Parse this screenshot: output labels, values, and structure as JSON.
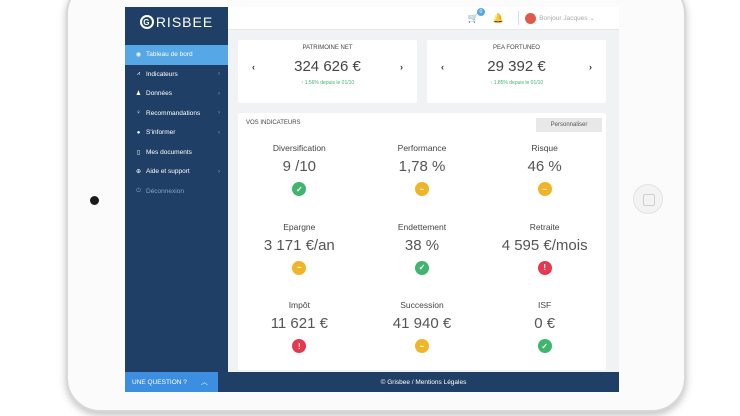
{
  "brand": {
    "logo_letter": "G",
    "logo_text": "RISBEE"
  },
  "sidebar": {
    "items": [
      {
        "label": "Tableau de bord",
        "icon": "dashboard-icon",
        "glyph": "◉"
      },
      {
        "label": "Indicateurs",
        "icon": "chart-icon",
        "glyph": "⩘"
      },
      {
        "label": "Données",
        "icon": "users-icon",
        "glyph": "♟"
      },
      {
        "label": "Recommandations",
        "icon": "lightbulb-icon",
        "glyph": "♀"
      },
      {
        "label": "S'informer",
        "icon": "info-icon",
        "glyph": "●"
      },
      {
        "label": "Mes documents",
        "icon": "document-icon",
        "glyph": "▯"
      },
      {
        "label": "Aide et support",
        "icon": "support-icon",
        "glyph": "⊕"
      },
      {
        "label": "Déconnexion",
        "icon": "power-icon",
        "glyph": "⏻"
      }
    ],
    "question_label": "UNE QUESTION ?"
  },
  "topbar": {
    "cart_count": "0",
    "user_label": "Bonjour Jacques"
  },
  "cards": [
    {
      "title": "PATRIMOINE NET",
      "value": "324 626 €",
      "change": "1.56% depuis le 01/10"
    },
    {
      "title": "PEA FORTUNEO",
      "value": "29 392 €",
      "change": "1.85% depuis le 01/10"
    }
  ],
  "indicators": {
    "title": "VOS INDICATEURS",
    "customize_label": "Personnaliser",
    "items": [
      {
        "name": "Diversification",
        "value": "9 /10",
        "status": "good",
        "icon": "check-icon",
        "glyph": "✓"
      },
      {
        "name": "Performance",
        "value": "1,78 %",
        "status": "mid",
        "icon": "neutral-icon",
        "glyph": "~"
      },
      {
        "name": "Risque",
        "value": "46 %",
        "status": "mid",
        "icon": "neutral-icon",
        "glyph": "~"
      },
      {
        "name": "Epargne",
        "value": "3 171 €/an",
        "status": "mid",
        "icon": "neutral-icon",
        "glyph": "~"
      },
      {
        "name": "Endettement",
        "value": "38 %",
        "status": "good",
        "icon": "check-icon",
        "glyph": "✓"
      },
      {
        "name": "Retraite",
        "value": "4 595 €/mois",
        "status": "bad",
        "icon": "alert-icon",
        "glyph": "!"
      },
      {
        "name": "Impôt",
        "value": "11 621 €",
        "status": "bad",
        "icon": "alert-icon",
        "glyph": "!"
      },
      {
        "name": "Succession",
        "value": "41 940 €",
        "status": "mid",
        "icon": "neutral-icon",
        "glyph": "~"
      },
      {
        "name": "ISF",
        "value": "0 €",
        "status": "good",
        "icon": "check-icon",
        "glyph": "✓"
      }
    ]
  },
  "footer": {
    "text": "© Grisbee   /   Mentions Légales"
  },
  "colors": {
    "sidebar": "#1f3f66",
    "accent": "#55a7e6",
    "good": "#3fb56e",
    "mid": "#f0b429",
    "bad": "#e53950"
  }
}
